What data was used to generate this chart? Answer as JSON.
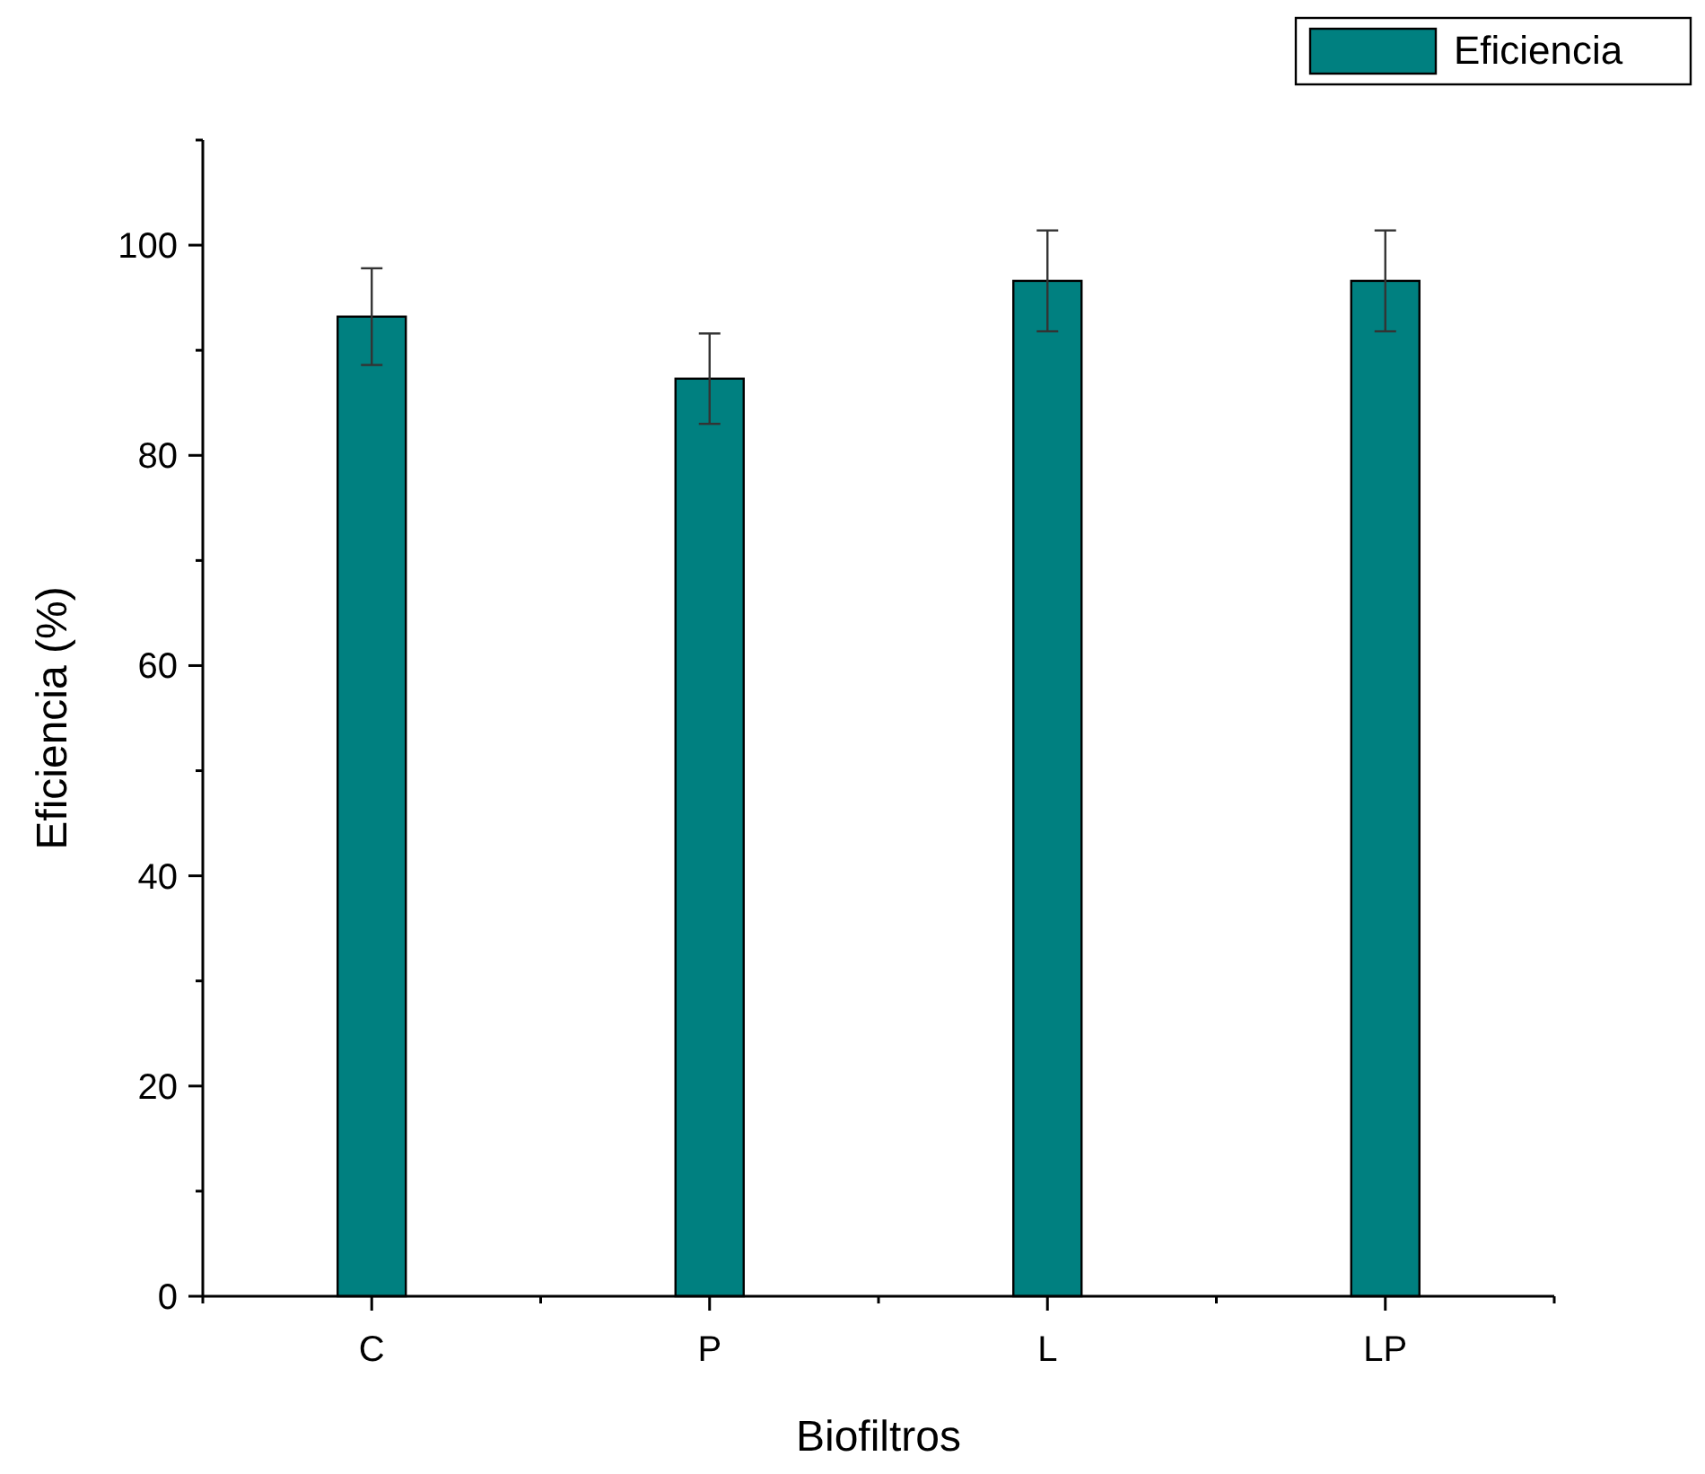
{
  "chart_data": {
    "type": "bar",
    "xlabel": "Biofiltros",
    "ylabel": "Eficiencia (%)",
    "categories": [
      "C",
      "P",
      "L",
      "LP"
    ],
    "series": [
      {
        "name": "Eficiencia",
        "color": "#008080",
        "values": [
          93.2,
          87.3,
          96.6,
          96.6
        ],
        "errors": [
          4.6,
          4.3,
          4.8,
          4.8
        ]
      }
    ],
    "ylim": [
      0,
      110
    ],
    "yticks": [
      0,
      20,
      40,
      60,
      80,
      100
    ],
    "grid": false,
    "legend": "top right"
  }
}
